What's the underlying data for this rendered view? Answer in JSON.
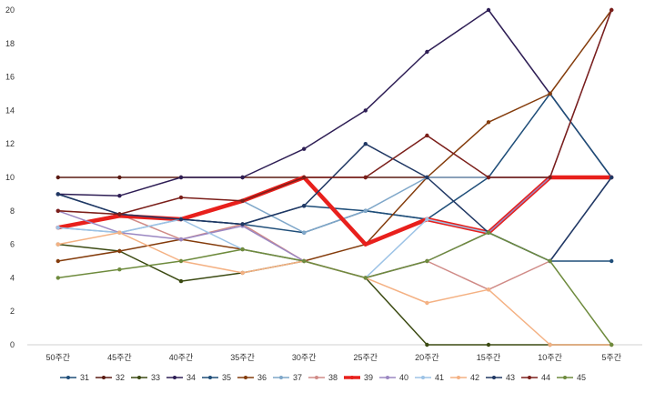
{
  "chart_data": {
    "type": "line",
    "title": "",
    "xlabel": "",
    "ylabel": "",
    "categories": [
      "50주간",
      "45주간",
      "40주간",
      "35주간",
      "30주간",
      "25주간",
      "20주간",
      "15주간",
      "10주간",
      "5주간"
    ],
    "ylim": [
      0,
      20
    ],
    "yticks": [
      0,
      2,
      4,
      6,
      8,
      10,
      12,
      14,
      16,
      18,
      20
    ],
    "grid": false,
    "legend_position": "bottom",
    "series": [
      {
        "name": "31",
        "color": "#1f4e79",
        "width": 1.5,
        "values": [
          9,
          7.8,
          7.5,
          7.2,
          6.7,
          8.0,
          7.5,
          6.7,
          5.0,
          5.0
        ]
      },
      {
        "name": "32",
        "color": "#5a1a12",
        "width": 1.5,
        "values": [
          10,
          10,
          10,
          10,
          10,
          10,
          10,
          10,
          10,
          10
        ]
      },
      {
        "name": "33",
        "color": "#3b4a12",
        "width": 1.5,
        "values": [
          6.0,
          5.6,
          3.8,
          4.3,
          5.0,
          4.0,
          0,
          0,
          0,
          0
        ]
      },
      {
        "name": "34",
        "color": "#2e1e55",
        "width": 1.5,
        "values": [
          9,
          8.9,
          10,
          10,
          11.7,
          14,
          17.5,
          20,
          15,
          10
        ]
      },
      {
        "name": "35",
        "color": "#1f4e79",
        "width": 1.5,
        "values": [
          7,
          7.8,
          7.5,
          7.2,
          8.3,
          8.0,
          7.5,
          10,
          15,
          10
        ]
      },
      {
        "name": "36",
        "color": "#843c0c",
        "width": 1.5,
        "values": [
          5,
          5.6,
          6.3,
          5.7,
          5.0,
          6.0,
          10,
          13.3,
          15,
          20
        ]
      },
      {
        "name": "37",
        "color": "#7fa7c9",
        "width": 1.5,
        "values": [
          7,
          6.7,
          7.5,
          8.6,
          6.7,
          8.0,
          10,
          10,
          10,
          10
        ]
      },
      {
        "name": "38",
        "color": "#d08b87",
        "width": 1.5,
        "values": [
          8,
          7.8,
          6.3,
          7.2,
          5.0,
          4.0,
          5.0,
          3.3,
          5.0,
          10
        ]
      },
      {
        "name": "39",
        "color": "#e8201c",
        "width": 4.5,
        "values": [
          7,
          7.7,
          7.5,
          8.6,
          10,
          6,
          7.5,
          6.7,
          10,
          10
        ]
      },
      {
        "name": "40",
        "color": "#9b87c2",
        "width": 1.5,
        "values": [
          8,
          6.7,
          6.3,
          7.1,
          5.0,
          4.0,
          5.0,
          6.7,
          10,
          20
        ]
      },
      {
        "name": "41",
        "color": "#9dc3e6",
        "width": 1.5,
        "values": [
          7,
          6.7,
          7.5,
          5.7,
          5.0,
          4.0,
          7.5,
          6.7,
          5.0,
          10
        ]
      },
      {
        "name": "42",
        "color": "#f4b183",
        "width": 1.5,
        "values": [
          6,
          6.7,
          5.0,
          4.3,
          5.0,
          4.0,
          2.5,
          3.3,
          0,
          0
        ]
      },
      {
        "name": "43",
        "color": "#203864",
        "width": 1.5,
        "values": [
          9,
          7.8,
          7.5,
          7.2,
          8.3,
          12,
          10,
          6.7,
          5.0,
          10
        ]
      },
      {
        "name": "44",
        "color": "#7b1f1a",
        "width": 1.5,
        "values": [
          8,
          7.8,
          8.8,
          8.6,
          10,
          10,
          12.5,
          10,
          10,
          20
        ]
      },
      {
        "name": "45",
        "color": "#6e8b3d",
        "width": 1.5,
        "values": [
          4,
          4.5,
          5.0,
          5.7,
          5.0,
          4.0,
          5.0,
          6.7,
          5.0,
          0
        ]
      }
    ]
  }
}
